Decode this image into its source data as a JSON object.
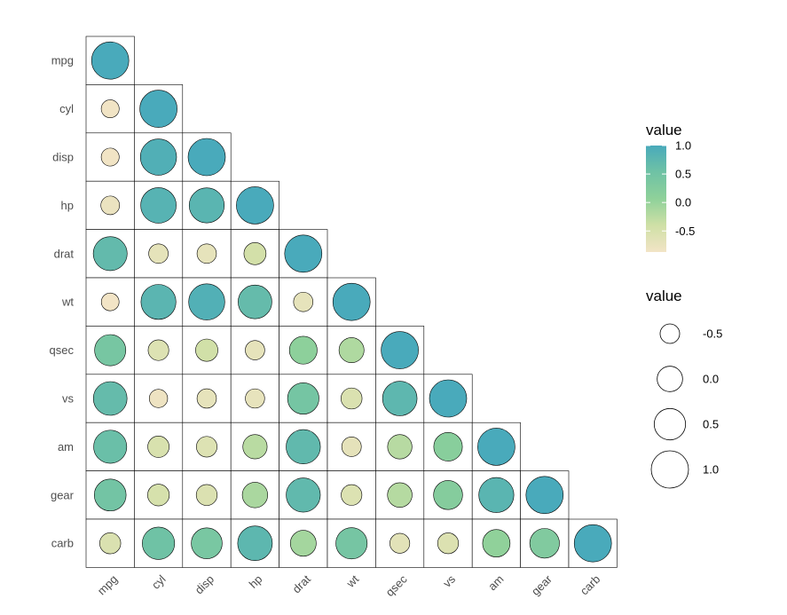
{
  "chart_data": {
    "type": "heatmap",
    "subtype": "lower-triangle correlation matrix (circles sized and colored by value)",
    "variables": [
      "mpg",
      "cyl",
      "disp",
      "hp",
      "drat",
      "wt",
      "qsec",
      "vs",
      "am",
      "gear",
      "carb"
    ],
    "values": [
      [
        1.0
      ],
      [
        -0.85,
        1.0
      ],
      [
        -0.85,
        0.9,
        1.0
      ],
      [
        -0.78,
        0.83,
        0.79,
        1.0
      ],
      [
        0.68,
        -0.7,
        -0.71,
        -0.45,
        1.0
      ],
      [
        -0.87,
        0.78,
        0.89,
        0.66,
        -0.71,
        1.0
      ],
      [
        0.42,
        -0.59,
        -0.43,
        -0.71,
        0.09,
        -0.17,
        1.0
      ],
      [
        0.66,
        -0.81,
        -0.71,
        -0.72,
        0.44,
        -0.55,
        0.74,
        1.0
      ],
      [
        0.6,
        -0.52,
        -0.59,
        -0.24,
        0.71,
        -0.69,
        -0.23,
        0.17,
        1.0
      ],
      [
        0.48,
        -0.49,
        -0.56,
        -0.13,
        0.7,
        -0.58,
        -0.21,
        0.21,
        0.79,
        1.0
      ],
      [
        -0.55,
        0.53,
        0.39,
        0.75,
        -0.09,
        0.43,
        -0.66,
        -0.57,
        0.06,
        0.27,
        1.0
      ]
    ],
    "color_scale": {
      "title": "value",
      "ticks": [
        "1.0",
        "0.5",
        "0.0",
        "-0.5"
      ],
      "tick_values": [
        1.0,
        0.5,
        0.0,
        -0.5
      ],
      "domain": [
        -0.87,
        1.0
      ],
      "colors": [
        "#f2e4c6",
        "#cfe0a6",
        "#8fd19a",
        "#6fc2a5",
        "#49aabb"
      ]
    },
    "size_scale": {
      "title": "value",
      "labels": [
        "-0.5",
        "0.0",
        "0.5",
        "1.0"
      ],
      "values": [
        -0.5,
        0.0,
        0.5,
        1.0
      ],
      "domain": [
        -0.87,
        1.0
      ]
    },
    "legend_placement": "right",
    "grid": false
  }
}
